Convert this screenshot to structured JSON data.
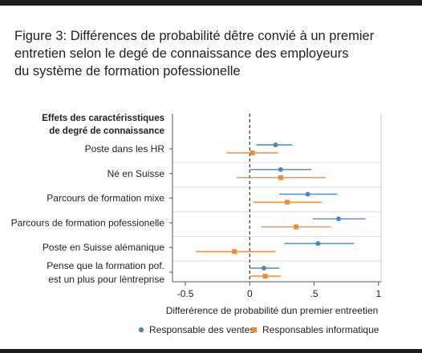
{
  "title_lines": [
    "Figure 3: Différences de probabilité dêtre convié à un premier",
    "entretien selon le degé de connaissance des employeurs",
    "du système de formation pofessionelle"
  ],
  "chart_data": {
    "type": "scatter",
    "subtype": "coefficient-plot-with-error-bars",
    "orientation": "horizontal",
    "ytitle_lines": [
      "Effets des caractérisstiques",
      "de degré de connaissance"
    ],
    "xlabel": "Differérence de probabilité dun premier entreetien",
    "xlim": [
      -0.6,
      1.02
    ],
    "xticks": [
      -0.5,
      0,
      0.5,
      1
    ],
    "xtick_labels": [
      "-0.5",
      "0",
      ".5",
      "1"
    ],
    "reference_line": 0,
    "grid": "horizontal",
    "legend_position": "bottom",
    "categories": [
      [
        "Poste dans les HR"
      ],
      [
        "Né en Suisse"
      ],
      [
        "Parcours de formation mixe"
      ],
      [
        "Parcours de formation pofessionelle"
      ],
      [
        "Poste en Suisse alémanique"
      ],
      [
        "Pense que la formation pof.",
        "est un plus pour lèntreprise"
      ]
    ],
    "series": [
      {
        "name": "Responsable des ventes",
        "color": "#4a86c5",
        "marker": "circle",
        "values": [
          0.2,
          0.24,
          0.45,
          0.69,
          0.53,
          0.11
        ],
        "ci_low": [
          0.05,
          0.0,
          0.23,
          0.49,
          0.27,
          0.0
        ],
        "ci_high": [
          0.33,
          0.48,
          0.68,
          0.9,
          0.81,
          0.23
        ]
      },
      {
        "name": "Responsables informatique",
        "color": "#f28b30",
        "marker": "square",
        "values": [
          0.02,
          0.24,
          0.29,
          0.36,
          -0.12,
          0.12
        ],
        "ci_low": [
          -0.18,
          -0.1,
          0.03,
          0.09,
          -0.42,
          0.0
        ],
        "ci_high": [
          0.22,
          0.59,
          0.56,
          0.63,
          0.2,
          0.24
        ]
      }
    ]
  }
}
